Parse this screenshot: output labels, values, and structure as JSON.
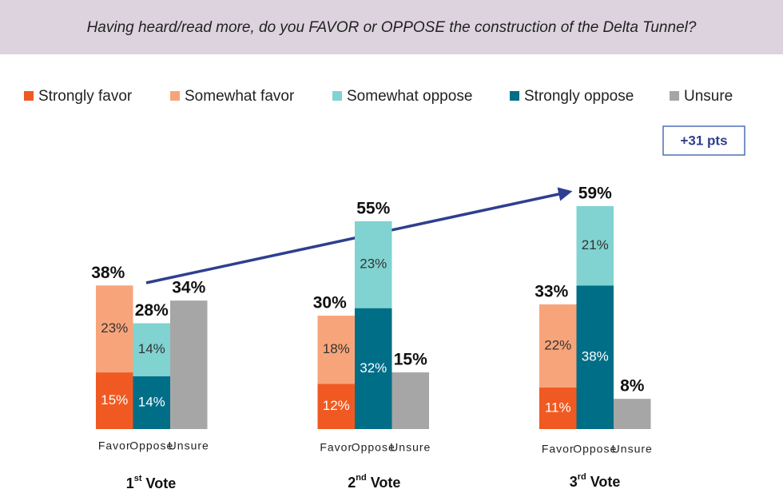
{
  "chart_data": {
    "type": "grouped_stacked_bar",
    "title": "Having heard/read more, do you FAVOR or OPPOSE the construction of the Delta Tunnel?",
    "groups": [
      {
        "number": "1",
        "ordinal": "st",
        "word": "Vote"
      },
      {
        "number": "2",
        "ordinal": "nd",
        "word": "Vote"
      },
      {
        "number": "3",
        "ordinal": "rd",
        "word": "Vote"
      }
    ],
    "stacks": [
      "Favor",
      "Oppose",
      "Unsure"
    ],
    "series": [
      {
        "name": "Strongly favor",
        "color": "#f05a22",
        "stack": "Favor",
        "values": [
          15,
          12,
          11
        ],
        "value_labels": [
          "15%",
          "12%",
          "11%"
        ]
      },
      {
        "name": "Somewhat favor",
        "color": "#f8a47a",
        "stack": "Favor",
        "values": [
          23,
          18,
          22
        ],
        "value_labels": [
          "23%",
          "18%",
          "22%"
        ]
      },
      {
        "name": "Somewhat oppose",
        "color": "#80d3d1",
        "stack": "Oppose",
        "values": [
          14,
          23,
          21
        ],
        "value_labels": [
          "14%",
          "23%",
          "21%"
        ]
      },
      {
        "name": "Strongly oppose",
        "color": "#006e87",
        "stack": "Oppose",
        "values": [
          14,
          32,
          38
        ],
        "value_labels": [
          "14%",
          "32%",
          "38%"
        ]
      },
      {
        "name": "Unsure",
        "color": "#a6a6a6",
        "stack": "Unsure",
        "values": [
          34,
          15,
          8
        ]
      }
    ],
    "totals": [
      {
        "stack": "Favor",
        "values": [
          38,
          30,
          33
        ],
        "value_labels": [
          "38%",
          "30%",
          "33%"
        ]
      },
      {
        "stack": "Oppose",
        "values": [
          28,
          55,
          59
        ],
        "value_labels": [
          "28%",
          "55%",
          "59%"
        ]
      },
      {
        "stack": "Unsure",
        "values": [
          34,
          15,
          8
        ],
        "value_labels": [
          "34%",
          "15%",
          "8%"
        ]
      }
    ],
    "annotation": "+31 pts"
  }
}
